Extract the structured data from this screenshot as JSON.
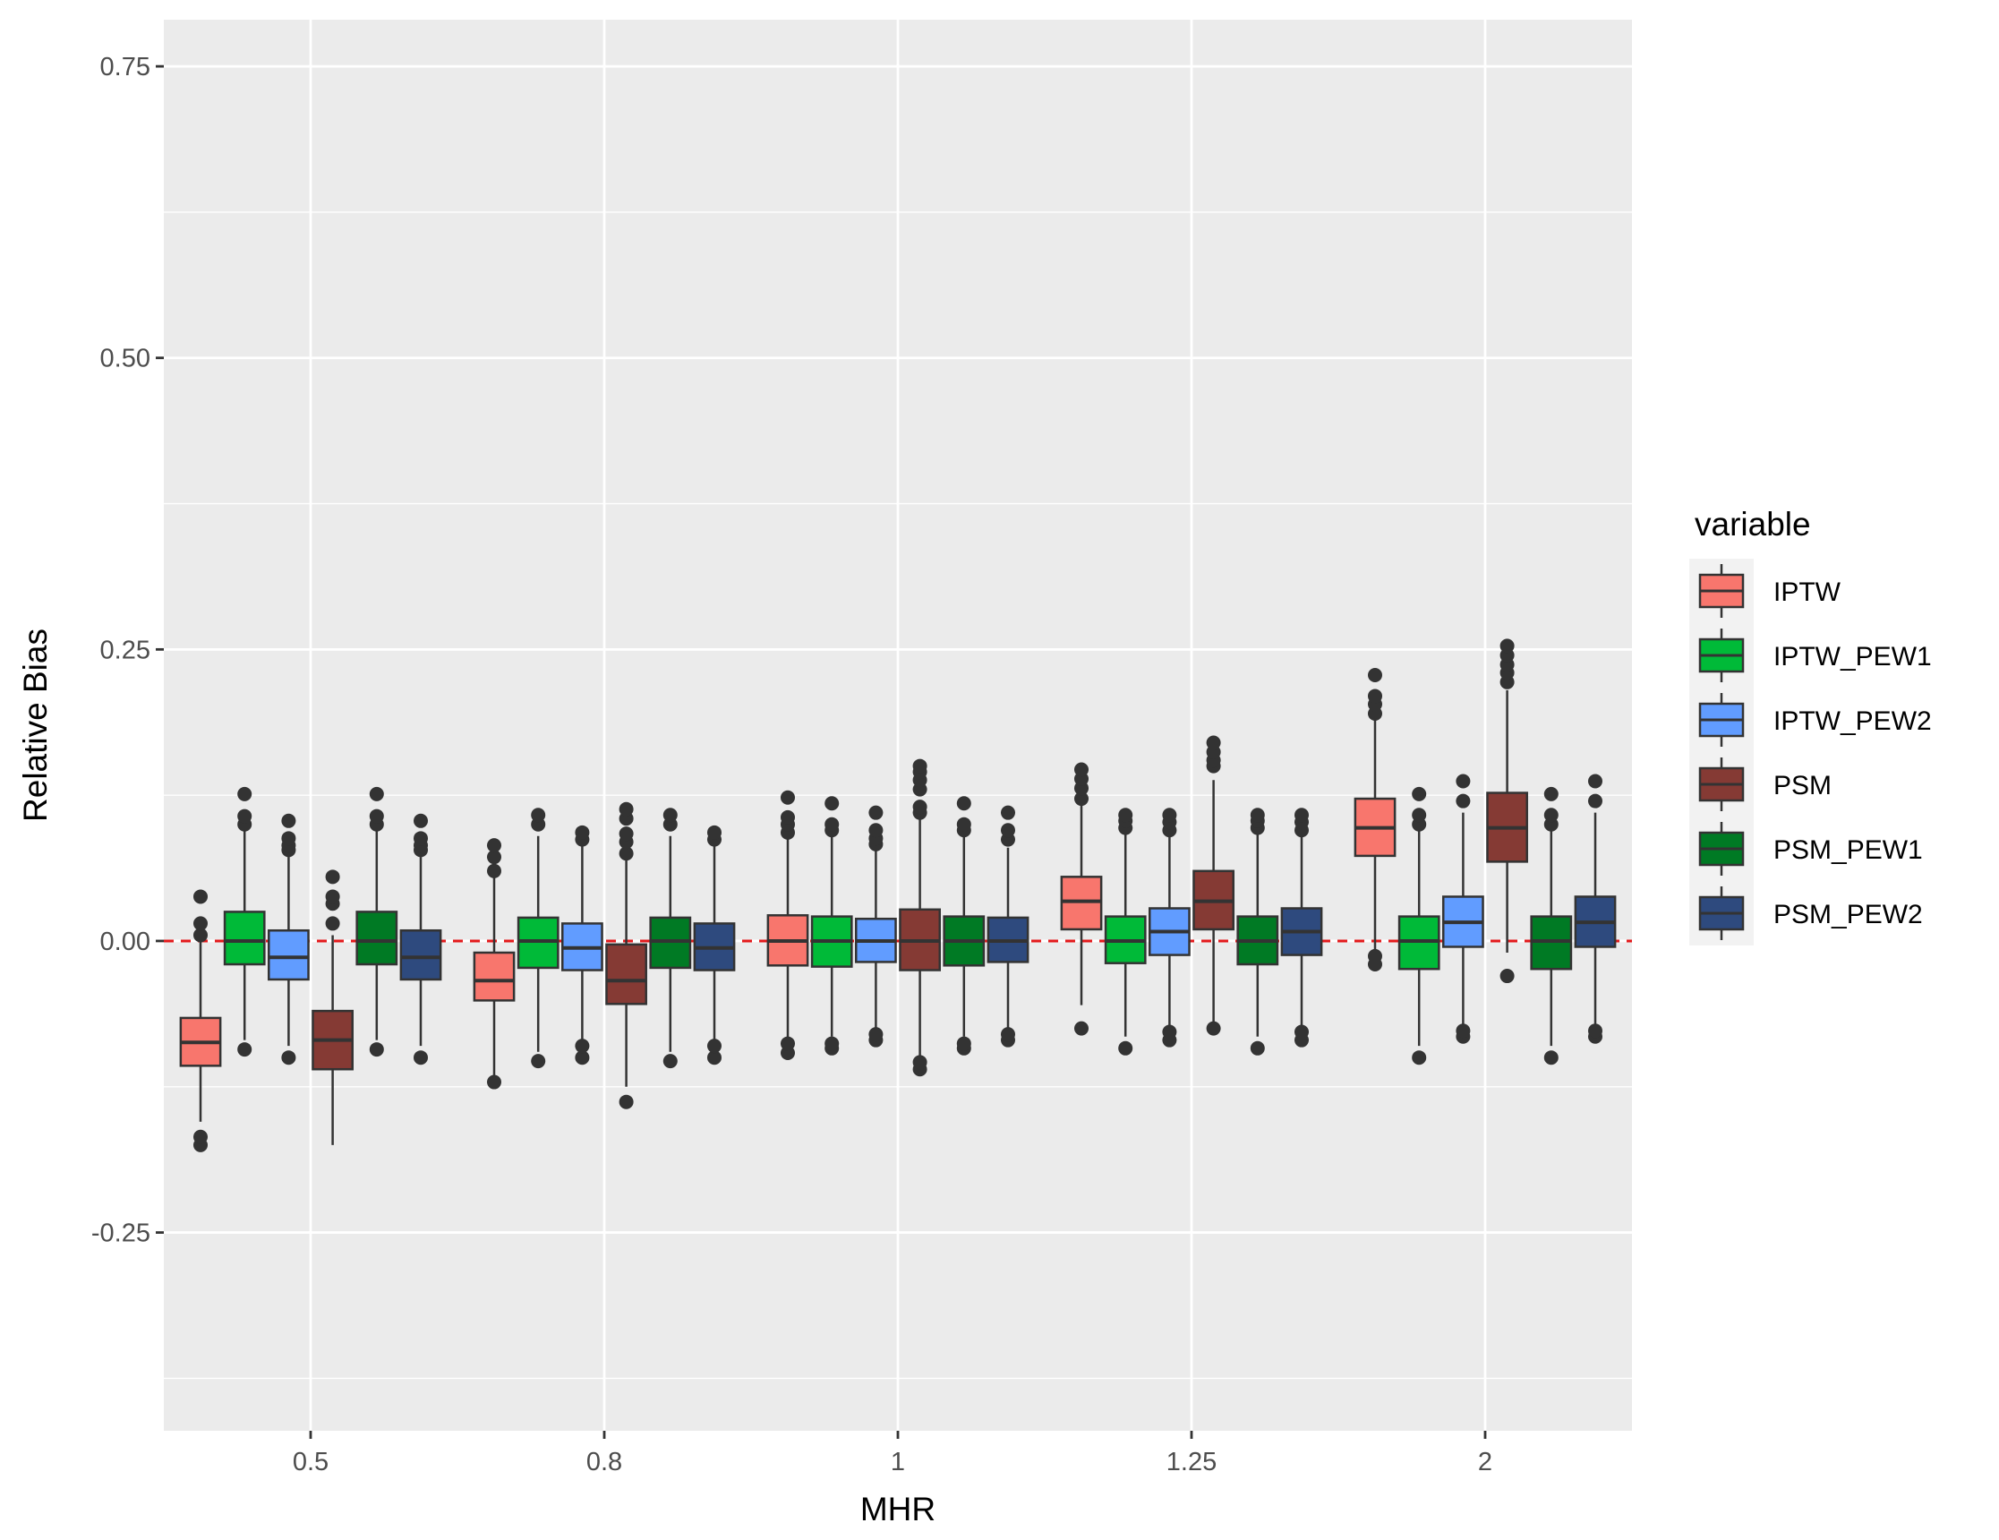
{
  "chart_data": {
    "type": "boxplot",
    "xlabel": "MHR",
    "ylabel": "Relative Bias",
    "categories": [
      "0.5",
      "0.8",
      "1",
      "1.25",
      "2"
    ],
    "ylim": [
      -0.42,
      0.79
    ],
    "yticks": [
      -0.25,
      0.0,
      0.25,
      0.5,
      0.75
    ],
    "ytick_labels": [
      "-0.25",
      "0.00",
      "0.25",
      "0.50",
      "0.75"
    ],
    "grid": true,
    "legend": {
      "title": "variable",
      "position": "right"
    },
    "reference_line": {
      "y": 0,
      "color": "#e41a1c",
      "style": "dashed"
    },
    "series": [
      {
        "name": "IPTW",
        "color": "#F8766D",
        "boxes": [
          {
            "whisker_low": -0.155,
            "q1": -0.107,
            "median": -0.087,
            "q3": -0.066,
            "whisker_high": 0.012,
            "outliers": [
              -0.175,
              -0.168,
              0.005,
              0.015,
              0.038
            ]
          },
          {
            "whisker_low": -0.115,
            "q1": -0.051,
            "median": -0.034,
            "q3": -0.01,
            "whisker_high": 0.055,
            "outliers": [
              -0.121,
              0.06,
              0.072,
              0.082
            ]
          },
          {
            "whisker_low": -0.085,
            "q1": -0.021,
            "median": 0.0,
            "q3": 0.022,
            "whisker_high": 0.088,
            "outliers": [
              -0.096,
              -0.088,
              0.093,
              0.1,
              0.106,
              0.123
            ]
          },
          {
            "whisker_low": -0.055,
            "q1": 0.01,
            "median": 0.034,
            "q3": 0.055,
            "whisker_high": 0.118,
            "outliers": [
              -0.075,
              0.122,
              0.131,
              0.139,
              0.147
            ]
          },
          {
            "whisker_low": -0.012,
            "q1": 0.073,
            "median": 0.097,
            "q3": 0.122,
            "whisker_high": 0.19,
            "outliers": [
              -0.02,
              -0.013,
              0.195,
              0.203,
              0.21,
              0.228
            ]
          }
        ]
      },
      {
        "name": "IPTW_PEW1",
        "color": "#00BA38",
        "boxes": [
          {
            "whisker_low": -0.085,
            "q1": -0.02,
            "median": 0.0,
            "q3": 0.025,
            "whisker_high": 0.095,
            "outliers": [
              -0.093,
              0.1,
              0.107,
              0.126
            ]
          },
          {
            "whisker_low": -0.095,
            "q1": -0.023,
            "median": 0.0,
            "q3": 0.02,
            "whisker_high": 0.09,
            "outliers": [
              -0.103,
              0.1,
              0.108
            ]
          },
          {
            "whisker_low": -0.082,
            "q1": -0.022,
            "median": 0.0,
            "q3": 0.021,
            "whisker_high": 0.092,
            "outliers": [
              -0.092,
              -0.088,
              0.095,
              0.1,
              0.118
            ]
          },
          {
            "whisker_low": -0.082,
            "q1": -0.019,
            "median": 0.0,
            "q3": 0.021,
            "whisker_high": 0.093,
            "outliers": [
              -0.092,
              0.097,
              0.103,
              0.108
            ]
          },
          {
            "whisker_low": -0.09,
            "q1": -0.024,
            "median": 0.0,
            "q3": 0.021,
            "whisker_high": 0.095,
            "outliers": [
              -0.1,
              0.1,
              0.108,
              0.126
            ]
          }
        ]
      },
      {
        "name": "IPTW_PEW2",
        "color": "#619CFF",
        "boxes": [
          {
            "whisker_low": -0.09,
            "q1": -0.033,
            "median": -0.014,
            "q3": 0.009,
            "whisker_high": 0.072,
            "outliers": [
              -0.1,
              0.078,
              0.082,
              0.088,
              0.103
            ]
          },
          {
            "whisker_low": -0.085,
            "q1": -0.025,
            "median": -0.006,
            "q3": 0.015,
            "whisker_high": 0.083,
            "outliers": [
              -0.1,
              -0.09,
              0.087,
              0.093
            ]
          },
          {
            "whisker_low": -0.078,
            "q1": -0.018,
            "median": 0.0,
            "q3": 0.019,
            "whisker_high": 0.078,
            "outliers": [
              -0.085,
              -0.08,
              0.083,
              0.088,
              0.095,
              0.11
            ]
          },
          {
            "whisker_low": -0.075,
            "q1": -0.012,
            "median": 0.008,
            "q3": 0.028,
            "whisker_high": 0.09,
            "outliers": [
              -0.085,
              -0.078,
              0.095,
              0.102,
              0.108
            ]
          },
          {
            "whisker_low": -0.075,
            "q1": -0.005,
            "median": 0.016,
            "q3": 0.038,
            "whisker_high": 0.11,
            "outliers": [
              -0.082,
              -0.077,
              0.12,
              0.137
            ]
          }
        ]
      },
      {
        "name": "PSM",
        "color": "#853A34",
        "boxes": [
          {
            "whisker_low": -0.175,
            "q1": -0.11,
            "median": -0.085,
            "q3": -0.06,
            "whisker_high": 0.005,
            "outliers": [
              0.015,
              0.032,
              0.038,
              0.055
            ]
          },
          {
            "whisker_low": -0.125,
            "q1": -0.054,
            "median": -0.034,
            "q3": -0.003,
            "whisker_high": 0.07,
            "outliers": [
              -0.138,
              0.075,
              0.085,
              0.092,
              0.105,
              0.113
            ]
          },
          {
            "whisker_low": -0.1,
            "q1": -0.025,
            "median": 0.0,
            "q3": 0.027,
            "whisker_high": 0.105,
            "outliers": [
              -0.11,
              -0.104,
              0.11,
              0.115,
              0.13,
              0.138,
              0.145,
              0.15
            ]
          },
          {
            "whisker_low": -0.07,
            "q1": 0.01,
            "median": 0.034,
            "q3": 0.06,
            "whisker_high": 0.138,
            "outliers": [
              -0.075,
              0.15,
              0.155,
              0.162,
              0.17
            ]
          },
          {
            "whisker_low": -0.01,
            "q1": 0.068,
            "median": 0.097,
            "q3": 0.127,
            "whisker_high": 0.215,
            "outliers": [
              -0.03,
              0.222,
              0.23,
              0.237,
              0.245,
              0.253
            ]
          }
        ]
      },
      {
        "name": "PSM_PEW1",
        "color": "#007A24",
        "boxes": [
          {
            "whisker_low": -0.085,
            "q1": -0.02,
            "median": 0.0,
            "q3": 0.025,
            "whisker_high": 0.095,
            "outliers": [
              -0.093,
              0.1,
              0.107,
              0.126
            ]
          },
          {
            "whisker_low": -0.095,
            "q1": -0.023,
            "median": 0.0,
            "q3": 0.02,
            "whisker_high": 0.09,
            "outliers": [
              -0.103,
              0.1,
              0.108
            ]
          },
          {
            "whisker_low": -0.082,
            "q1": -0.021,
            "median": 0.0,
            "q3": 0.021,
            "whisker_high": 0.09,
            "outliers": [
              -0.092,
              -0.088,
              0.095,
              0.1,
              0.118
            ]
          },
          {
            "whisker_low": -0.082,
            "q1": -0.02,
            "median": 0.0,
            "q3": 0.021,
            "whisker_high": 0.093,
            "outliers": [
              -0.092,
              0.097,
              0.103,
              0.108
            ]
          },
          {
            "whisker_low": -0.09,
            "q1": -0.024,
            "median": 0.0,
            "q3": 0.021,
            "whisker_high": 0.095,
            "outliers": [
              -0.1,
              0.1,
              0.108,
              0.126
            ]
          }
        ]
      },
      {
        "name": "PSM_PEW2",
        "color": "#2E4A7E",
        "boxes": [
          {
            "whisker_low": -0.09,
            "q1": -0.033,
            "median": -0.014,
            "q3": 0.009,
            "whisker_high": 0.072,
            "outliers": [
              -0.1,
              0.078,
              0.082,
              0.088,
              0.103
            ]
          },
          {
            "whisker_low": -0.085,
            "q1": -0.025,
            "median": -0.006,
            "q3": 0.015,
            "whisker_high": 0.083,
            "outliers": [
              -0.1,
              -0.09,
              0.087,
              0.093
            ]
          },
          {
            "whisker_low": -0.078,
            "q1": -0.018,
            "median": 0.0,
            "q3": 0.02,
            "whisker_high": 0.08,
            "outliers": [
              -0.085,
              -0.08,
              0.087,
              0.095,
              0.11
            ]
          },
          {
            "whisker_low": -0.075,
            "q1": -0.012,
            "median": 0.008,
            "q3": 0.028,
            "whisker_high": 0.09,
            "outliers": [
              -0.085,
              -0.078,
              0.095,
              0.102,
              0.108
            ]
          },
          {
            "whisker_low": -0.075,
            "q1": -0.005,
            "median": 0.016,
            "q3": 0.038,
            "whisker_high": 0.11,
            "outliers": [
              -0.082,
              -0.077,
              0.12,
              0.137
            ]
          }
        ]
      }
    ]
  }
}
